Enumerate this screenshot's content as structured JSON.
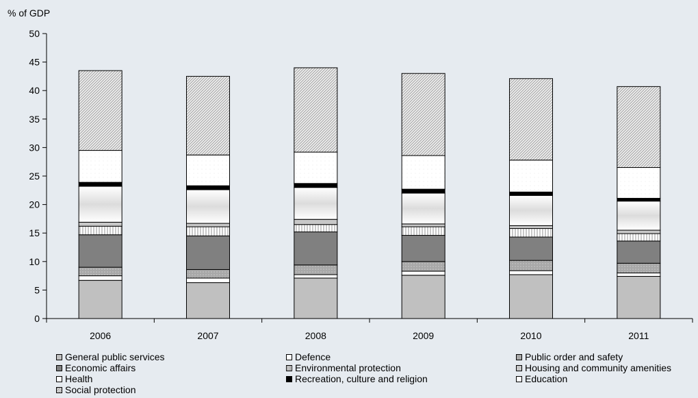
{
  "chart_data": {
    "type": "bar",
    "stacked": true,
    "ylabel": "% of GDP",
    "ylim": [
      0,
      50
    ],
    "yticks": [
      0,
      5,
      10,
      15,
      20,
      25,
      30,
      35,
      40,
      45,
      50
    ],
    "grid": false,
    "legend_position": "bottom",
    "categories": [
      "2006",
      "2007",
      "2008",
      "2009",
      "2010",
      "2011"
    ],
    "series": [
      {
        "name": "General public services",
        "color": "#c0c0c0",
        "pattern": "solid",
        "values": [
          6.7,
          6.3,
          7.1,
          7.6,
          7.7,
          7.4
        ]
      },
      {
        "name": "Defence",
        "color": "#ffffff",
        "pattern": "solid",
        "values": [
          0.8,
          0.8,
          0.6,
          0.7,
          0.7,
          0.6
        ]
      },
      {
        "name": "Public order and safety",
        "color": "#a8a8a8",
        "pattern": "dots",
        "values": [
          1.5,
          1.5,
          1.7,
          1.7,
          1.8,
          1.7
        ]
      },
      {
        "name": "Economic affairs",
        "color": "#808080",
        "pattern": "solid",
        "values": [
          5.7,
          5.9,
          5.8,
          4.6,
          4.1,
          3.9
        ]
      },
      {
        "name": "Environmental protection",
        "color": "#ffffff",
        "pattern": "vlines",
        "values": [
          1.5,
          1.6,
          1.3,
          1.5,
          1.5,
          1.3
        ]
      },
      {
        "name": "Housing and community amenities",
        "color": "#c8c8c8",
        "pattern": "solid",
        "values": [
          0.7,
          0.6,
          0.9,
          0.5,
          0.5,
          0.6
        ]
      },
      {
        "name": "Health",
        "color": "#ffffff",
        "pattern": "gradient",
        "values": [
          6.3,
          5.9,
          5.6,
          5.4,
          5.3,
          5.1
        ]
      },
      {
        "name": "Recreation, culture and religion",
        "color": "#000000",
        "pattern": "solid",
        "values": [
          0.7,
          0.7,
          0.7,
          0.7,
          0.6,
          0.5
        ]
      },
      {
        "name": "Education",
        "color": "#ffffff",
        "pattern": "sparse",
        "values": [
          5.6,
          5.4,
          5.5,
          5.9,
          5.6,
          5.4
        ]
      },
      {
        "name": "Social protection",
        "color": "#d8d8d8",
        "pattern": "diagonal",
        "values": [
          14.0,
          13.8,
          14.8,
          14.4,
          14.3,
          14.2
        ]
      }
    ]
  }
}
